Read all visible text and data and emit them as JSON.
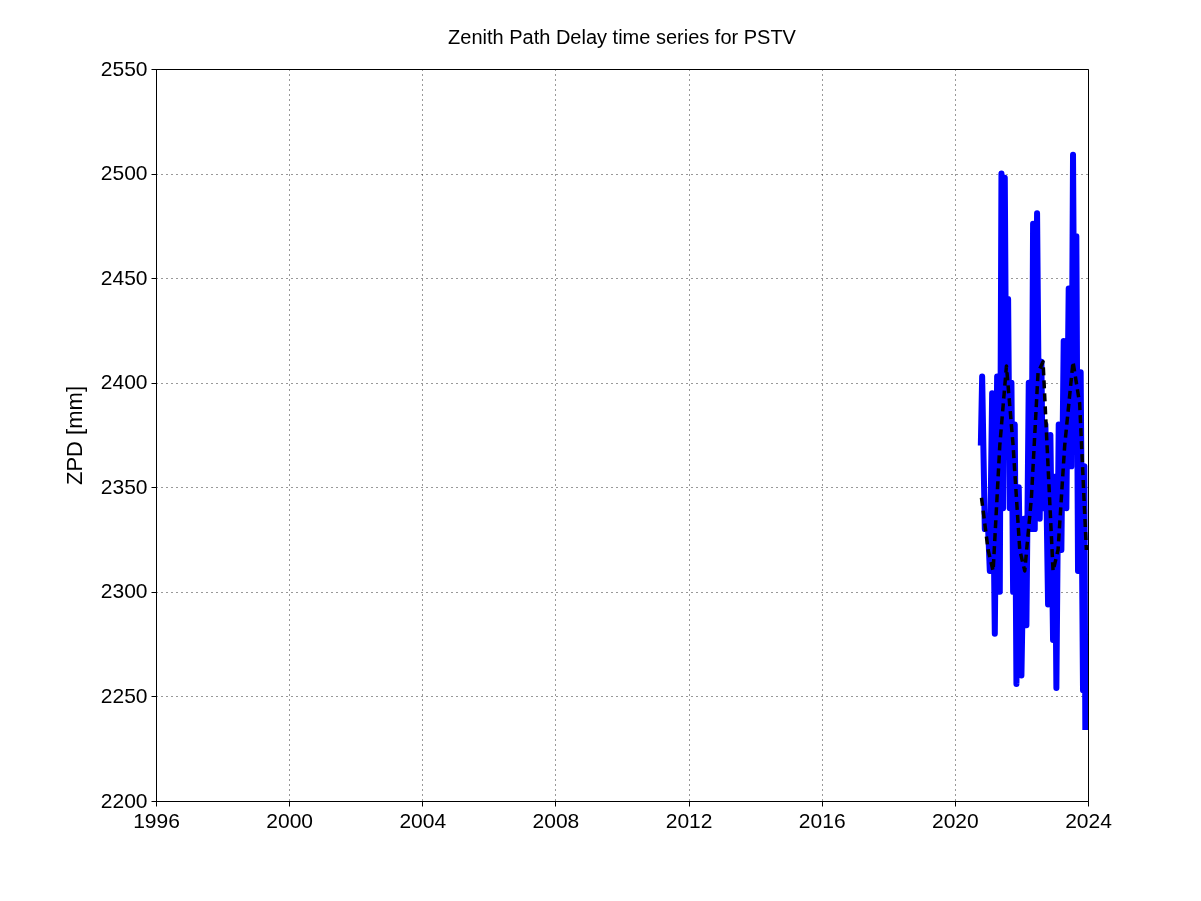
{
  "chart_data": {
    "type": "line",
    "title": "Zenith Path Delay time series for PSTV",
    "ylabel": "ZPD [mm]",
    "xlim": [
      1996,
      2024
    ],
    "xticks": [
      1996,
      2000,
      2004,
      2008,
      2012,
      2016,
      2020,
      2024
    ],
    "ylim": [
      2200,
      2550
    ],
    "yticks": [
      2200,
      2250,
      2300,
      2350,
      2400,
      2450,
      2500,
      2550
    ],
    "grid": true,
    "series": [
      {
        "color": "#0000ff",
        "line_style": "solid",
        "x": [
          2020.78,
          2020.82,
          2020.9,
          2021.0,
          2021.05,
          2021.12,
          2021.2,
          2021.27,
          2021.35,
          2021.4,
          2021.45,
          2021.5,
          2021.55,
          2021.6,
          2021.65,
          2021.7,
          2021.75,
          2021.8,
          2021.85,
          2021.92,
          2022.0,
          2022.08,
          2022.15,
          2022.22,
          2022.3,
          2022.35,
          2022.4,
          2022.47,
          2022.55,
          2022.6,
          2022.65,
          2022.72,
          2022.8,
          2022.87,
          2022.95,
          2023.0,
          2023.05,
          2023.12,
          2023.2,
          2023.27,
          2023.35,
          2023.42,
          2023.5,
          2023.55,
          2023.6,
          2023.65,
          2023.7,
          2023.78,
          2023.85,
          2023.89,
          2023.92
        ],
        "values": [
          2370,
          2403,
          2330,
          2330,
          2310,
          2395,
          2280,
          2403,
          2300,
          2500,
          2340,
          2498,
          2370,
          2440,
          2340,
          2400,
          2300,
          2380,
          2256,
          2350,
          2260,
          2335,
          2284,
          2400,
          2330,
          2476,
          2330,
          2481,
          2335,
          2410,
          2340,
          2380,
          2294,
          2375,
          2277,
          2355,
          2254,
          2380,
          2320,
          2420,
          2340,
          2445,
          2360,
          2509,
          2380,
          2470,
          2310,
          2405,
          2253,
          2360,
          2234
        ]
      },
      {
        "color": "#000000",
        "line_style": "dashed",
        "x": [
          2020.8,
          2021.0,
          2021.15,
          2021.35,
          2021.55,
          2021.75,
          2021.95,
          2022.1,
          2022.3,
          2022.5,
          2022.65,
          2022.8,
          2022.95,
          2023.1,
          2023.3,
          2023.55,
          2023.75,
          2023.95
        ],
        "values": [
          2345,
          2320,
          2310,
          2370,
          2408,
          2370,
          2320,
          2310,
          2345,
          2405,
          2410,
          2360,
          2310,
          2320,
          2370,
          2410,
          2390,
          2320
        ]
      }
    ]
  }
}
